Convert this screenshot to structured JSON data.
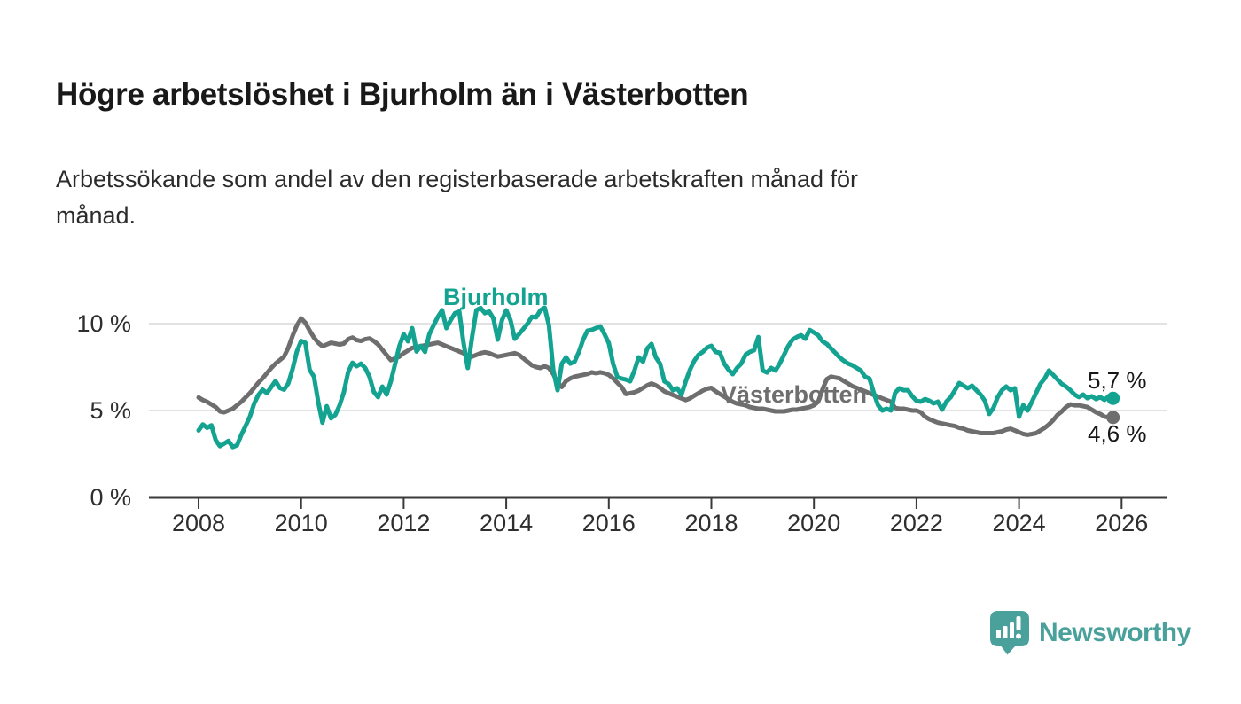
{
  "chart_data": {
    "type": "line",
    "title": "Högre arbetslöshet i Bjurholm än i Västerbotten",
    "subtitle_lines": [
      "Arbetssökande som andel av den registerbaserade arbetskraften månad för",
      "månad."
    ],
    "unit": "%",
    "frequency": "monthly",
    "start_year": 2008,
    "end_point": "2025-11",
    "x_axis": {
      "ticks": [
        2008,
        2010,
        2012,
        2014,
        2016,
        2018,
        2020,
        2022,
        2024,
        2026
      ],
      "range": [
        2007.0,
        2026.9
      ]
    },
    "y_axis": {
      "ticks": [
        {
          "value": 0,
          "label": "0 %"
        },
        {
          "value": 5,
          "label": "5 %"
        },
        {
          "value": 10,
          "label": "10 %"
        }
      ],
      "range": [
        0,
        11.5
      ],
      "grid": true
    },
    "legend_position": "inline-labels",
    "colors": {
      "gridline": "#d8d8d8",
      "axis": "#3a3a3a",
      "tick_text": "#2e2e2e",
      "value_text": "#161616"
    },
    "series": [
      {
        "name": "Bjurholm",
        "color": "#14a391",
        "end_label": "5,7 %",
        "last_value": 5.7,
        "values": [
          3.85,
          4.2,
          4.0,
          4.15,
          3.3,
          2.95,
          3.1,
          3.25,
          2.9,
          3.0,
          3.6,
          4.1,
          4.65,
          5.4,
          5.9,
          6.2,
          6.0,
          6.35,
          6.7,
          6.3,
          6.2,
          6.55,
          7.4,
          8.4,
          9.0,
          8.9,
          7.35,
          6.95,
          5.5,
          4.3,
          5.25,
          4.55,
          4.75,
          5.3,
          6.05,
          7.2,
          7.75,
          7.55,
          7.7,
          7.45,
          6.95,
          6.07,
          5.77,
          6.38,
          5.92,
          6.68,
          7.7,
          8.72,
          9.4,
          8.98,
          9.74,
          8.4,
          8.72,
          8.37,
          9.39,
          9.9,
          10.4,
          10.77,
          9.74,
          10.2,
          10.6,
          10.7,
          8.9,
          7.45,
          9.2,
          10.77,
          10.9,
          10.6,
          10.7,
          10.3,
          9.08,
          10.2,
          10.77,
          10.2,
          9.13,
          9.4,
          9.7,
          10.0,
          10.4,
          10.36,
          10.77,
          10.92,
          9.9,
          7.35,
          6.17,
          7.7,
          8.06,
          7.7,
          7.81,
          8.37,
          9.08,
          9.59,
          9.64,
          9.74,
          9.84,
          9.39,
          8.88,
          7.7,
          6.94,
          6.84,
          6.78,
          6.68,
          7.3,
          8.06,
          7.81,
          8.57,
          8.83,
          8.06,
          7.7,
          6.68,
          6.53,
          6.17,
          6.28,
          5.92,
          6.68,
          7.35,
          7.86,
          8.21,
          8.37,
          8.62,
          8.72,
          8.37,
          8.32,
          7.7,
          7.35,
          7.09,
          7.45,
          7.7,
          8.21,
          8.37,
          8.47,
          9.23,
          7.3,
          7.19,
          7.45,
          7.3,
          7.7,
          8.21,
          8.72,
          9.08,
          9.23,
          9.33,
          9.13,
          9.64,
          9.49,
          9.33,
          8.98,
          8.83,
          8.57,
          8.32,
          8.06,
          7.86,
          7.7,
          7.6,
          7.45,
          7.3,
          6.94,
          6.84,
          6.02,
          5.31,
          5.0,
          5.1,
          5.0,
          6.02,
          6.28,
          6.17,
          6.17,
          5.82,
          5.56,
          5.51,
          5.66,
          5.56,
          5.41,
          5.51,
          5.05,
          5.51,
          5.77,
          6.17,
          6.58,
          6.43,
          6.28,
          6.43,
          6.17,
          5.92,
          5.56,
          4.8,
          5.15,
          5.77,
          6.17,
          6.38,
          6.17,
          6.28,
          4.64,
          5.31,
          5.0,
          5.51,
          6.02,
          6.53,
          6.84,
          7.3,
          7.04,
          6.78,
          6.53,
          6.38,
          6.17,
          5.92,
          5.77,
          5.92,
          5.71,
          5.82,
          5.66,
          5.77,
          5.61,
          5.82,
          5.7
        ]
      },
      {
        "name": "Västerbotten",
        "color": "#6e6e6e",
        "end_label": "4,6 %",
        "last_value": 4.6,
        "values": [
          5.75,
          5.6,
          5.5,
          5.35,
          5.2,
          4.95,
          4.9,
          5.0,
          5.1,
          5.3,
          5.5,
          5.75,
          6.0,
          6.3,
          6.6,
          6.85,
          7.15,
          7.45,
          7.7,
          7.9,
          8.1,
          8.6,
          9.3,
          9.9,
          10.3,
          10.05,
          9.6,
          9.2,
          8.9,
          8.7,
          8.8,
          8.9,
          8.85,
          8.8,
          8.85,
          9.1,
          9.2,
          9.05,
          9.0,
          9.1,
          9.15,
          9.0,
          8.8,
          8.5,
          8.2,
          7.9,
          8.0,
          8.1,
          8.3,
          8.45,
          8.6,
          8.65,
          8.7,
          8.75,
          8.8,
          8.85,
          8.9,
          8.8,
          8.7,
          8.6,
          8.5,
          8.4,
          8.3,
          8.0,
          8.1,
          8.2,
          8.3,
          8.35,
          8.3,
          8.2,
          8.1,
          8.15,
          8.2,
          8.25,
          8.3,
          8.2,
          8.0,
          7.8,
          7.6,
          7.5,
          7.45,
          7.55,
          7.45,
          7.1,
          6.6,
          6.35,
          6.7,
          6.85,
          6.95,
          7.0,
          7.05,
          7.1,
          7.2,
          7.15,
          7.2,
          7.15,
          7.05,
          6.85,
          6.6,
          6.35,
          5.95,
          6.0,
          6.05,
          6.15,
          6.3,
          6.45,
          6.55,
          6.45,
          6.3,
          6.1,
          6.0,
          5.9,
          5.8,
          5.7,
          5.6,
          5.7,
          5.85,
          6.0,
          6.15,
          6.25,
          6.3,
          6.1,
          5.95,
          5.8,
          5.65,
          5.5,
          5.4,
          5.35,
          5.3,
          5.2,
          5.15,
          5.1,
          5.1,
          5.05,
          5.0,
          4.95,
          4.95,
          4.95,
          5.0,
          5.05,
          5.05,
          5.1,
          5.15,
          5.2,
          5.3,
          5.5,
          6.2,
          6.8,
          6.95,
          6.9,
          6.85,
          6.7,
          6.55,
          6.4,
          6.3,
          6.2,
          6.1,
          6.0,
          5.9,
          5.8,
          5.7,
          5.6,
          5.5,
          5.15,
          5.1,
          5.1,
          5.05,
          5.0,
          5.0,
          4.9,
          4.65,
          4.5,
          4.4,
          4.3,
          4.25,
          4.2,
          4.15,
          4.1,
          4.0,
          3.95,
          3.85,
          3.8,
          3.75,
          3.7,
          3.7,
          3.7,
          3.7,
          3.75,
          3.8,
          3.9,
          3.95,
          3.85,
          3.75,
          3.65,
          3.6,
          3.65,
          3.7,
          3.85,
          4.0,
          4.2,
          4.45,
          4.75,
          4.95,
          5.2,
          5.35,
          5.3,
          5.3,
          5.25,
          5.2,
          5.05,
          4.9,
          4.8,
          4.65,
          4.6,
          4.6
        ]
      }
    ]
  },
  "branding": {
    "logo_text": "Newsworthy",
    "logo_color": "#4aa09b",
    "logo_icon": "speech-bubble-bar-chart-icon"
  }
}
